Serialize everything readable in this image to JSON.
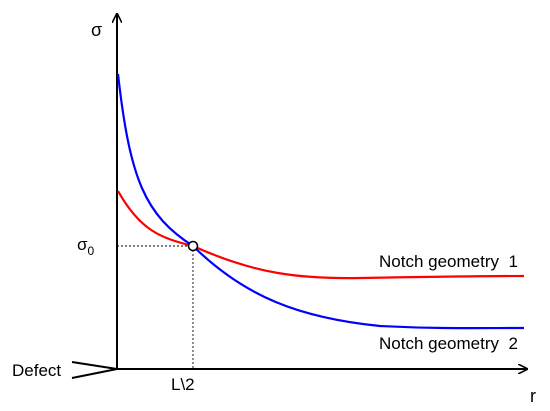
{
  "chart_data": {
    "type": "line",
    "title": "",
    "xlabel": "r",
    "ylabel": "σ",
    "series": [
      {
        "name": "Notch geometry  1",
        "color": "#ff0000",
        "label": "Notch geometry  1"
      },
      {
        "name": "Notch geometry  2",
        "color": "#0000ff",
        "label": "Notch geometry  2"
      }
    ],
    "intersection": {
      "x_label": "L\\2",
      "y_label_base": "σ",
      "y_label_sub": "0"
    },
    "annotations": {
      "defect_label": "Defect"
    },
    "grid": false,
    "legend": "inline"
  }
}
